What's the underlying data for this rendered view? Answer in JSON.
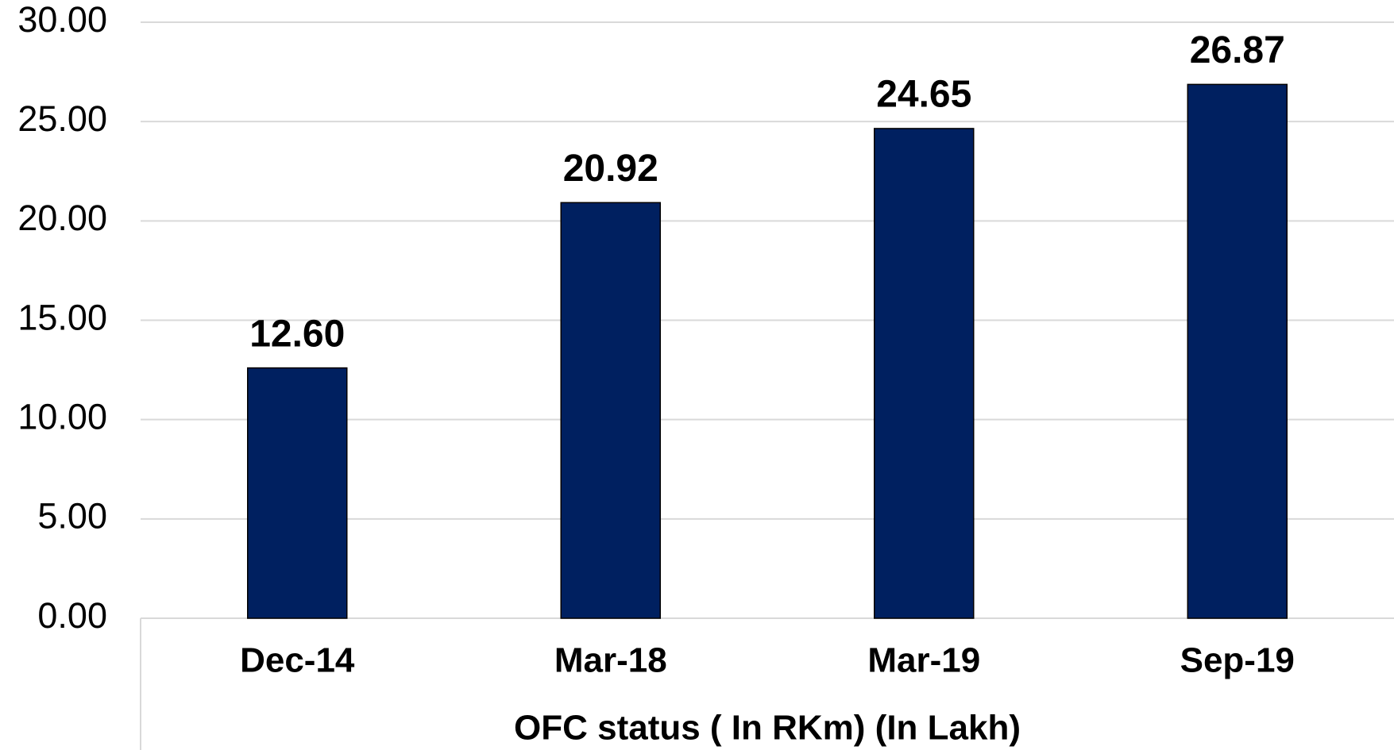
{
  "chart_data": {
    "type": "bar",
    "x_label": "OFC status ( In RKm) (In Lakh)",
    "categories": [
      "Dec-14",
      "Mar-18",
      "Mar-19",
      "Sep-19"
    ],
    "values": [
      12.6,
      20.92,
      24.65,
      26.87
    ],
    "value_labels": [
      "12.60",
      "20.92",
      "24.65",
      "26.87"
    ],
    "color": "#002060",
    "ylim": [
      0,
      30
    ],
    "yticks": [
      {
        "value": 0,
        "label": "0.00"
      },
      {
        "value": 5,
        "label": "5.00"
      },
      {
        "value": 10,
        "label": "10.00"
      },
      {
        "value": 15,
        "label": "15.00"
      },
      {
        "value": 20,
        "label": "20.00"
      },
      {
        "value": 25,
        "label": "25.00"
      },
      {
        "value": 30,
        "label": "30.00"
      }
    ],
    "grid": true
  }
}
